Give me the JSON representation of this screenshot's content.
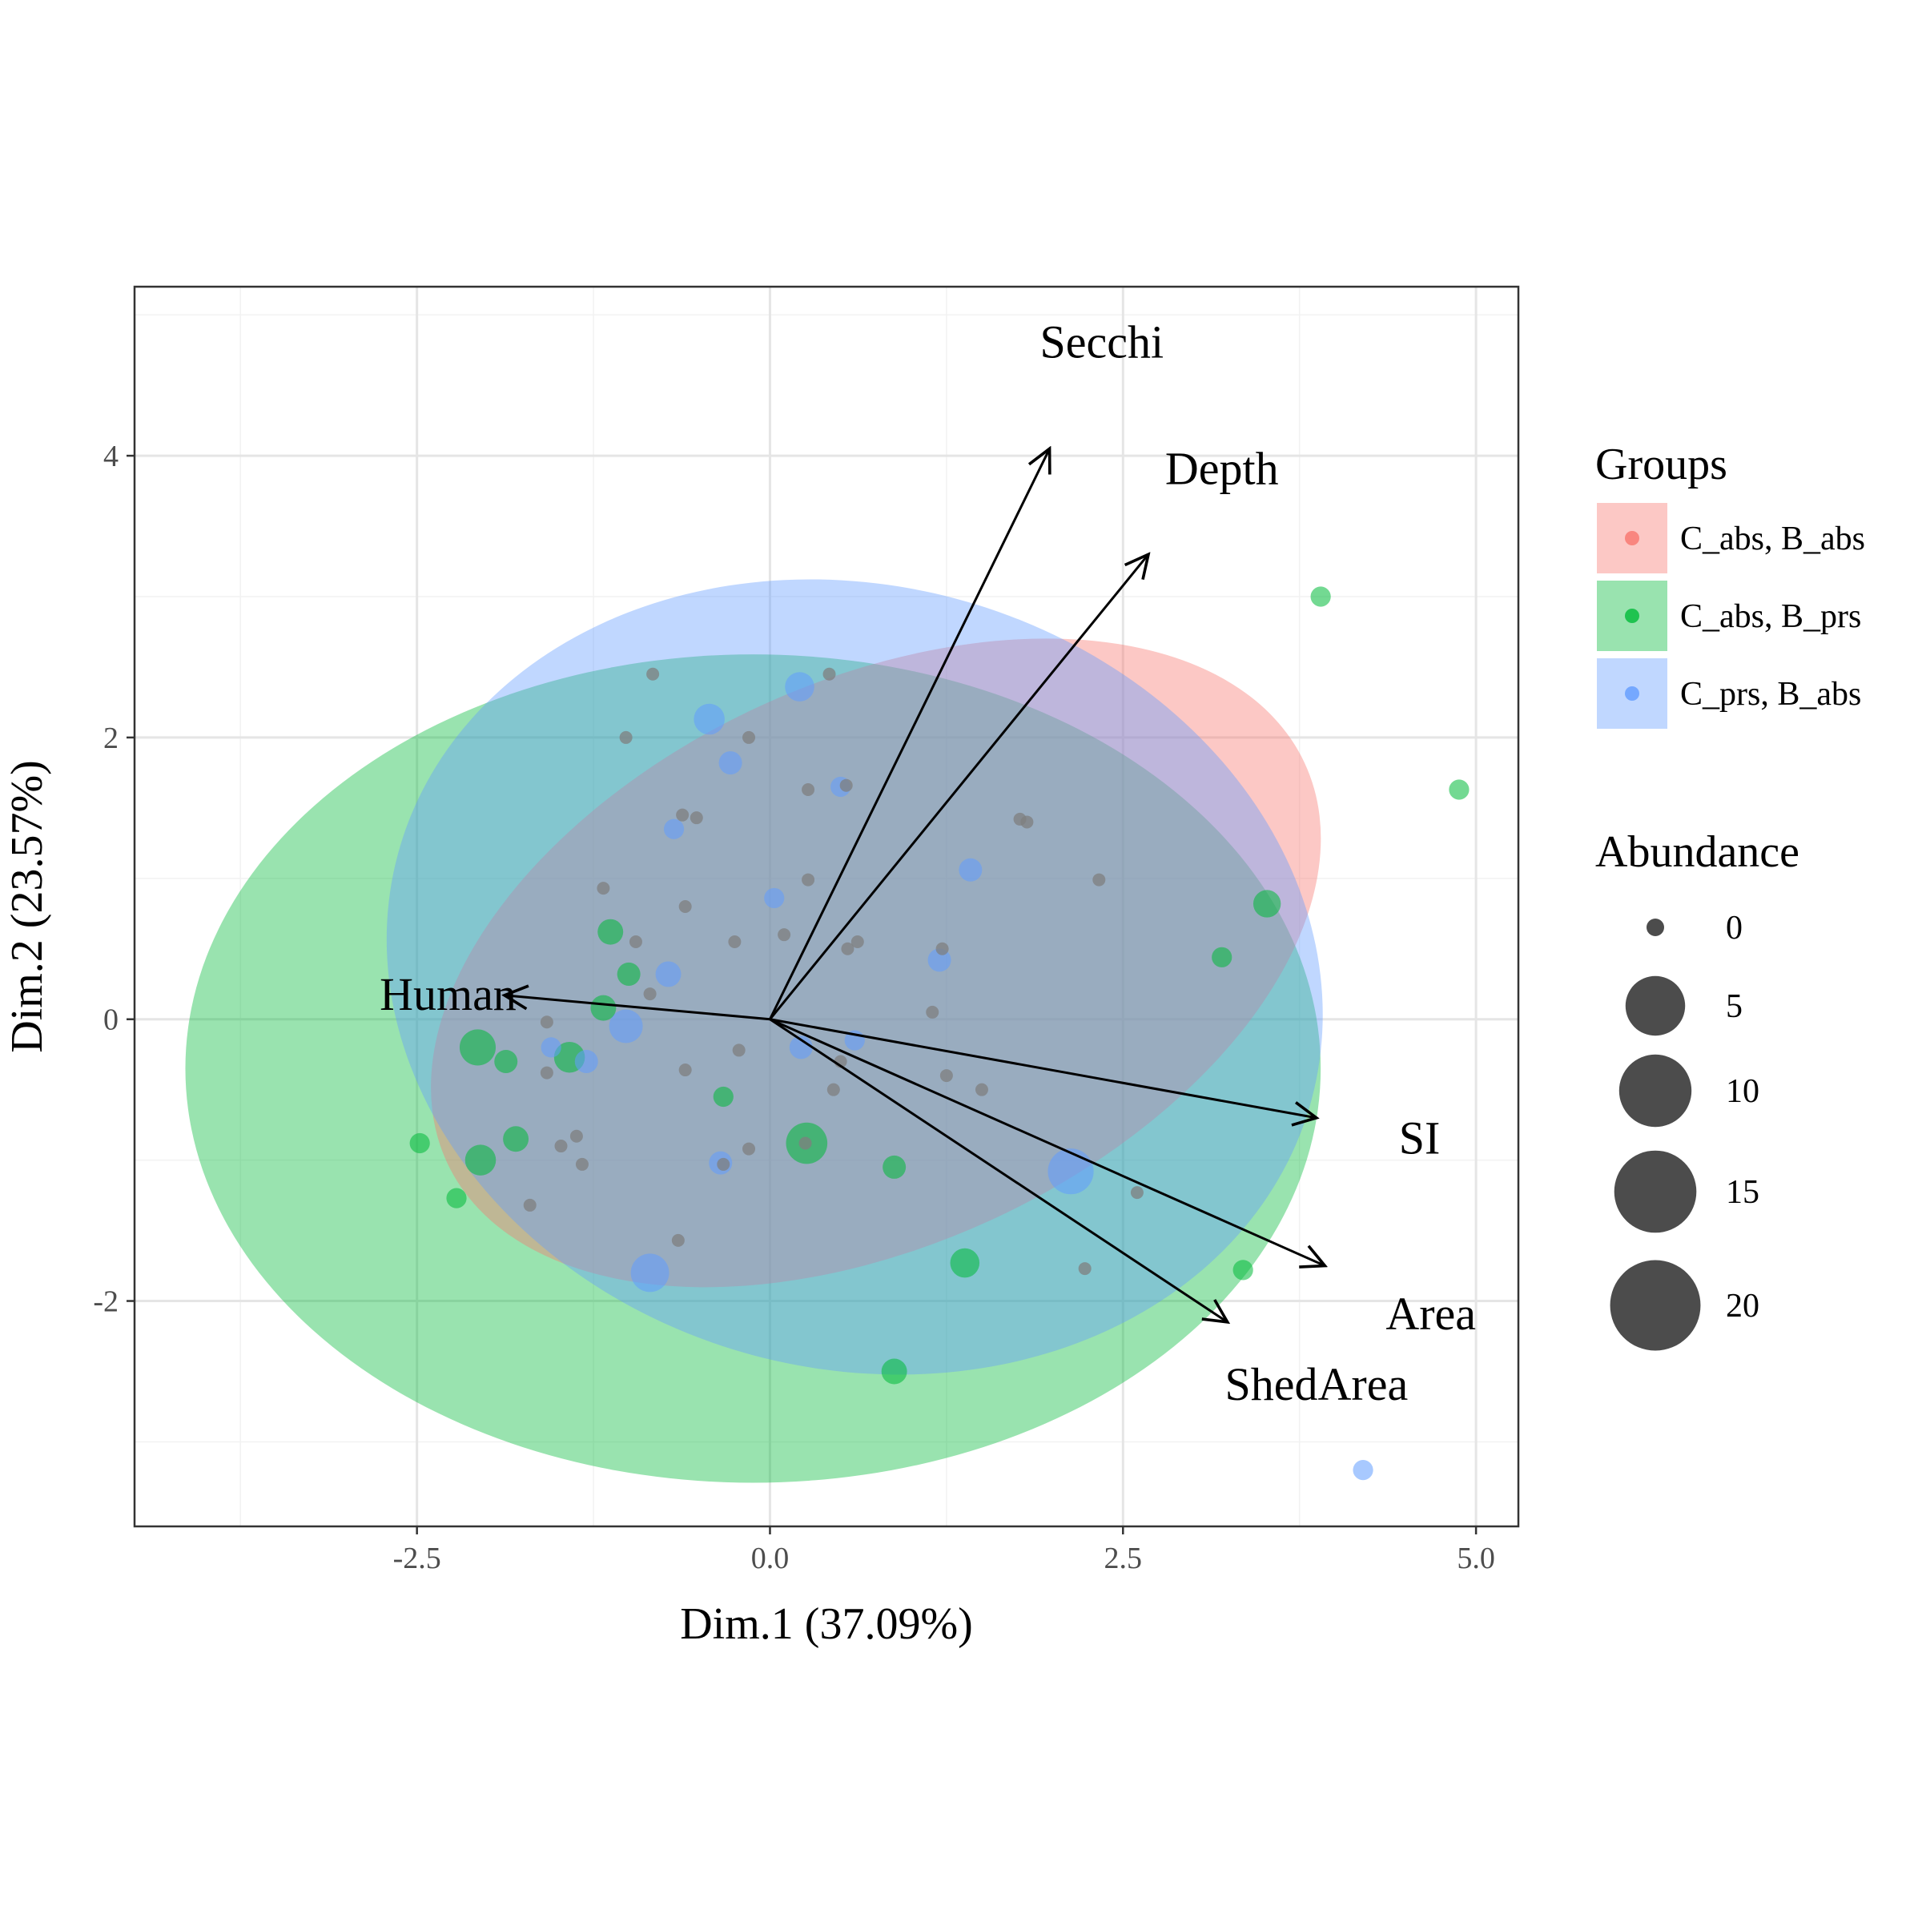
{
  "chart_data": {
    "type": "scatter",
    "subtype": "pca-biplot",
    "title": "",
    "xlabel": "Dim.1 (37.09%)",
    "ylabel": "Dim.2 (23.57%)",
    "xlim": [
      -4.5,
      5.3
    ],
    "ylim": [
      -3.6,
      5.2
    ],
    "x_ticks": [
      {
        "value": -2.5,
        "label": "-2.5"
      },
      {
        "value": 0,
        "label": "0.0"
      },
      {
        "value": 2.5,
        "label": "2.5"
      },
      {
        "value": 5,
        "label": "5.0"
      }
    ],
    "y_ticks": [
      {
        "value": -2,
        "label": "-2"
      },
      {
        "value": 0,
        "label": "0"
      },
      {
        "value": 2,
        "label": "2"
      },
      {
        "value": 4,
        "label": "4"
      }
    ],
    "grid": true,
    "legend_position": "right",
    "groups": [
      {
        "name": "C_abs, B_abs",
        "color": "#F8766D"
      },
      {
        "name": "C_abs, B_prs",
        "color": "#00BA38"
      },
      {
        "name": "C_prs, B_abs",
        "color": "#619CFF"
      }
    ],
    "ellipses": [
      {
        "group": "C_abs, B_abs",
        "cx": 0.75,
        "cy": 0.4,
        "rx": 3.35,
        "ry": 2.0,
        "angle": 25
      },
      {
        "group": "C_abs, B_prs",
        "cx": -0.12,
        "cy": -0.35,
        "rx": 4.02,
        "ry": 2.94,
        "angle": 0
      },
      {
        "group": "C_prs, B_abs",
        "cx": 0.6,
        "cy": 0.3,
        "rx": 3.35,
        "ry": 2.78,
        "angle": -15
      }
    ],
    "variables": [
      {
        "name": "Secchi",
        "x": 1.98,
        "y": 4.05,
        "label_x": 2.35,
        "label_y": 4.8
      },
      {
        "name": "Depth",
        "x": 2.68,
        "y": 3.3,
        "label_x": 3.2,
        "label_y": 3.9
      },
      {
        "name": "Human",
        "x": -1.88,
        "y": 0.17,
        "label_x": -2.28,
        "label_y": 0.17
      },
      {
        "name": "SI",
        "x": 3.87,
        "y": -0.7,
        "label_x": 4.6,
        "label_y": -0.85
      },
      {
        "name": "Area",
        "x": 3.93,
        "y": -1.75,
        "label_x": 4.68,
        "label_y": -2.1
      },
      {
        "name": "ShedArea",
        "x": 3.24,
        "y": -2.15,
        "label_x": 3.87,
        "label_y": -2.6
      }
    ],
    "points": [
      {
        "x": 3.9,
        "y": 3.0,
        "size": 1,
        "group": "C_abs, B_prs"
      },
      {
        "x": 4.88,
        "y": 1.63,
        "size": 1,
        "group": "C_abs, B_prs"
      },
      {
        "x": 3.2,
        "y": 0.44,
        "size": 1,
        "group": "C_abs, B_prs"
      },
      {
        "x": 3.52,
        "y": 0.82,
        "size": 4,
        "group": "C_abs, B_prs"
      },
      {
        "x": 3.35,
        "y": -1.78,
        "size": 1,
        "group": "C_abs, B_prs"
      },
      {
        "x": 4.2,
        "y": -3.2,
        "size": 1,
        "group": "C_prs, B_abs"
      },
      {
        "x": 2.6,
        "y": -1.23,
        "size": 0,
        "group": "C_abs, B_prs"
      },
      {
        "x": 2.23,
        "y": -1.77,
        "size": 0,
        "group": "C_abs, B_prs"
      },
      {
        "x": 2.13,
        "y": -1.08,
        "size": 20,
        "group": "C_prs, B_abs"
      },
      {
        "x": 1.38,
        "y": -1.73,
        "size": 5,
        "group": "C_abs, B_prs"
      },
      {
        "x": 0.88,
        "y": -2.5,
        "size": 3,
        "group": "C_abs, B_prs"
      },
      {
        "x": 0.26,
        "y": -0.88,
        "size": 15,
        "group": "C_abs, B_prs"
      },
      {
        "x": -0.43,
        "y": 2.13,
        "size": 6,
        "group": "C_prs, B_abs"
      },
      {
        "x": 0.21,
        "y": 2.36,
        "size": 5,
        "group": "C_prs, B_abs"
      },
      {
        "x": -0.28,
        "y": 1.82,
        "size": 2,
        "group": "C_prs, B_abs"
      },
      {
        "x": 0.5,
        "y": 1.65,
        "size": 1,
        "group": "C_prs, B_abs"
      },
      {
        "x": -0.85,
        "y": -1.8,
        "size": 12,
        "group": "C_prs, B_abs"
      },
      {
        "x": -2.07,
        "y": -0.2,
        "size": 10,
        "group": "C_abs, B_prs"
      },
      {
        "x": -1.02,
        "y": -0.05,
        "size": 8,
        "group": "C_prs, B_abs"
      },
      {
        "x": -1.42,
        "y": -0.27,
        "size": 6,
        "group": "C_abs, B_prs"
      },
      {
        "x": -2.05,
        "y": -1.0,
        "size": 6,
        "group": "C_abs, B_prs"
      },
      {
        "x": -1.8,
        "y": -0.85,
        "size": 3,
        "group": "C_abs, B_prs"
      },
      {
        "x": -2.48,
        "y": -0.88,
        "size": 1,
        "group": "C_abs, B_prs"
      },
      {
        "x": -2.22,
        "y": -1.27,
        "size": 1,
        "group": "C_abs, B_prs"
      },
      {
        "x": -1.13,
        "y": 0.62,
        "size": 3,
        "group": "C_abs, B_prs"
      },
      {
        "x": -0.72,
        "y": 0.32,
        "size": 3,
        "group": "C_prs, B_abs"
      },
      {
        "x": -1.0,
        "y": 0.32,
        "size": 2,
        "group": "C_abs, B_prs"
      },
      {
        "x": -1.18,
        "y": 0.08,
        "size": 3,
        "group": "C_abs, B_prs"
      },
      {
        "x": 1.42,
        "y": 1.06,
        "size": 2,
        "group": "C_prs, B_abs"
      },
      {
        "x": 1.2,
        "y": 0.42,
        "size": 2,
        "group": "C_prs, B_abs"
      },
      {
        "x": 0.03,
        "y": 0.86,
        "size": 1,
        "group": "C_prs, B_abs"
      },
      {
        "x": 0.88,
        "y": -1.05,
        "size": 2,
        "group": "C_abs, B_prs"
      },
      {
        "x": -0.68,
        "y": 1.35,
        "size": 1,
        "group": "C_prs, B_abs"
      },
      {
        "x": -0.33,
        "y": -0.55,
        "size": 1,
        "group": "C_abs, B_prs"
      },
      {
        "x": -0.35,
        "y": -1.02,
        "size": 2,
        "group": "C_prs, B_abs"
      },
      {
        "x": 0.45,
        "y": -0.5,
        "size": 0,
        "group": "C_abs, B_prs"
      },
      {
        "x": 1.5,
        "y": -0.5,
        "size": 0,
        "group": "C_abs, B_prs"
      },
      {
        "x": 1.15,
        "y": 0.05,
        "size": 0,
        "group": "C_abs, B_prs"
      },
      {
        "x": -0.62,
        "y": 1.45,
        "size": 0,
        "group": "C_abs, B_prs"
      },
      {
        "x": -1.48,
        "y": -0.9,
        "size": 0,
        "group": "C_abs, B_prs"
      },
      {
        "x": -1.7,
        "y": -1.32,
        "size": 0,
        "group": "C_abs, B_prs"
      },
      {
        "x": -0.15,
        "y": -0.92,
        "size": 0,
        "group": "C_abs, B_prs"
      },
      {
        "x": 0.1,
        "y": 0.6,
        "size": 0,
        "group": "C_abs, B_prs"
      },
      {
        "x": 0.42,
        "y": 2.45,
        "size": 0,
        "group": "C_abs, B_prs"
      },
      {
        "x": -1.02,
        "y": 2.0,
        "size": 0,
        "group": "C_abs, B_prs"
      },
      {
        "x": 1.25,
        "y": -0.4,
        "size": 0,
        "group": "C_abs, B_prs"
      },
      {
        "x": 0.62,
        "y": 0.55,
        "size": 0,
        "group": "C_abs, B_prs"
      },
      {
        "x": -0.52,
        "y": 1.43,
        "size": 0,
        "group": "C_prs, B_abs"
      },
      {
        "x": 0.6,
        "y": -0.15,
        "size": 1,
        "group": "C_prs, B_abs"
      },
      {
        "x": -0.22,
        "y": -0.22,
        "size": 0,
        "group": "C_prs, B_abs"
      },
      {
        "x": -0.6,
        "y": 0.8,
        "size": 0,
        "group": "C_prs, B_abs"
      },
      {
        "x": -1.55,
        "y": -0.2,
        "size": 1,
        "group": "C_prs, B_abs"
      },
      {
        "x": -1.87,
        "y": -0.3,
        "size": 2,
        "group": "C_abs, B_prs"
      },
      {
        "x": -0.95,
        "y": 0.55,
        "size": 0,
        "group": "C_abs, B_prs"
      },
      {
        "x": -0.25,
        "y": 0.55,
        "size": 0,
        "group": "C_prs, B_abs"
      },
      {
        "x": 0.22,
        "y": -0.2,
        "size": 2,
        "group": "C_prs, B_abs"
      },
      {
        "x": -1.3,
        "y": -0.3,
        "size": 2,
        "group": "C_prs, B_abs"
      },
      {
        "x": 0.5,
        "y": -0.3,
        "size": 0,
        "group": "C_prs, B_abs"
      },
      {
        "x": -0.85,
        "y": 0.18,
        "size": 0,
        "group": "C_abs, B_prs"
      },
      {
        "x": 1.77,
        "y": 1.42,
        "size": 0,
        "group": "C_abs, B_prs"
      },
      {
        "x": 1.82,
        "y": 1.4,
        "size": 0,
        "group": "C_abs, B_abs"
      },
      {
        "x": 2.33,
        "y": 0.99,
        "size": 0,
        "group": "C_abs, B_abs"
      },
      {
        "x": -0.83,
        "y": 2.45,
        "size": 0,
        "group": "C_abs, B_abs"
      },
      {
        "x": -1.18,
        "y": 0.93,
        "size": 0,
        "group": "C_abs, B_abs"
      },
      {
        "x": 0.27,
        "y": 1.63,
        "size": 0,
        "group": "C_abs, B_abs"
      },
      {
        "x": 0.27,
        "y": 0.99,
        "size": 0,
        "group": "C_abs, B_abs"
      },
      {
        "x": 0.54,
        "y": 1.66,
        "size": 0,
        "group": "C_abs, B_abs"
      },
      {
        "x": -0.15,
        "y": 2.0,
        "size": 0,
        "group": "C_abs, B_abs"
      },
      {
        "x": 0.55,
        "y": 0.5,
        "size": 0,
        "group": "C_abs, B_abs"
      },
      {
        "x": 1.22,
        "y": 0.5,
        "size": 0,
        "group": "C_abs, B_abs"
      },
      {
        "x": -1.58,
        "y": -0.02,
        "size": 0,
        "group": "C_abs, B_abs"
      },
      {
        "x": -1.58,
        "y": -0.38,
        "size": 0,
        "group": "C_abs, B_abs"
      },
      {
        "x": -0.6,
        "y": -0.36,
        "size": 0,
        "group": "C_abs, B_abs"
      },
      {
        "x": -1.37,
        "y": -0.83,
        "size": 0,
        "group": "C_abs, B_abs"
      },
      {
        "x": -1.33,
        "y": -1.03,
        "size": 0,
        "group": "C_abs, B_abs"
      },
      {
        "x": -0.65,
        "y": -1.57,
        "size": 0,
        "group": "C_abs, B_abs"
      },
      {
        "x": -0.33,
        "y": -1.03,
        "size": 0,
        "group": "C_abs, B_abs"
      },
      {
        "x": 0.25,
        "y": -0.88,
        "size": 0,
        "group": "C_abs, B_abs"
      }
    ],
    "size_legend": {
      "title": "Abundance",
      "entries": [
        {
          "value": 0,
          "label": "0"
        },
        {
          "value": 5,
          "label": "5"
        },
        {
          "value": 10,
          "label": "10"
        },
        {
          "value": 15,
          "label": "15"
        },
        {
          "value": 20,
          "label": "20"
        }
      ]
    },
    "legend": {
      "title": "Groups"
    }
  }
}
